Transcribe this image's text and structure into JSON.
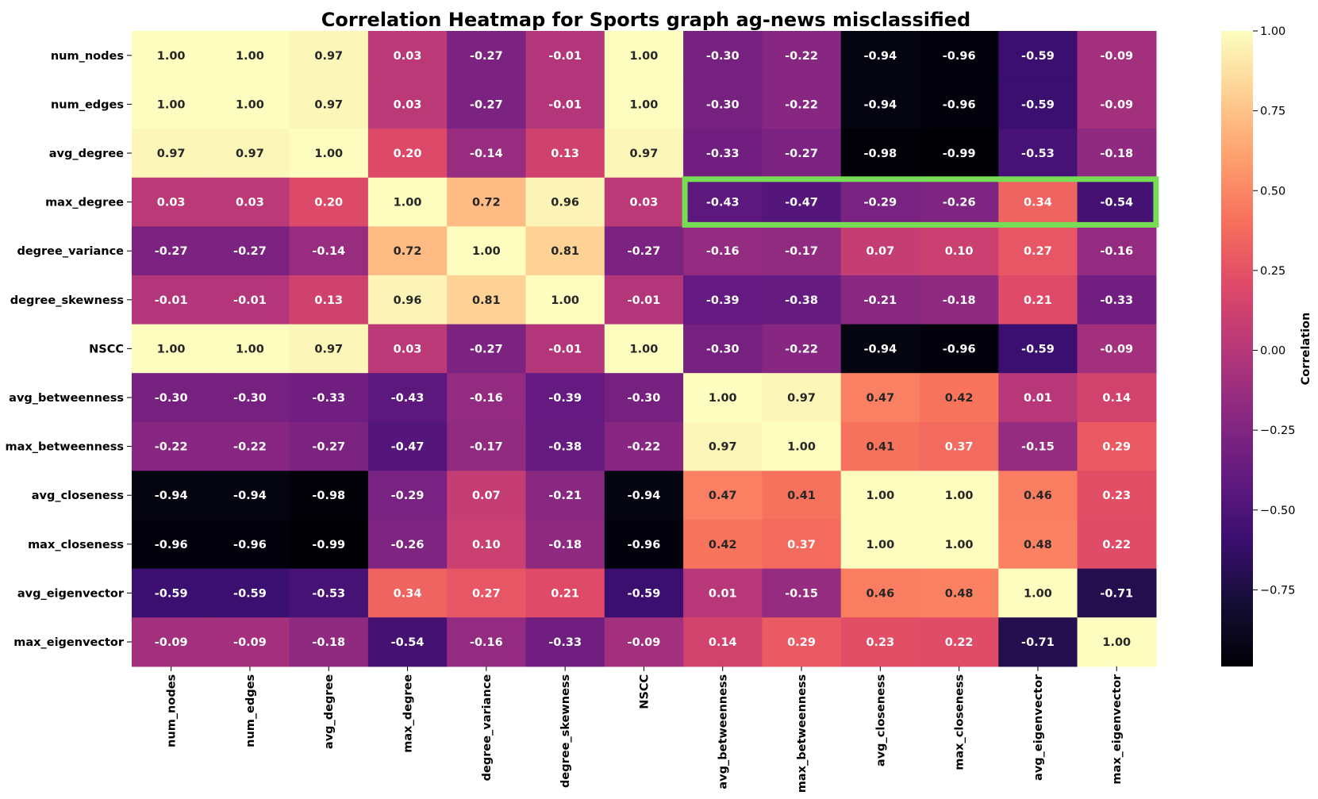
{
  "chart_data": {
    "type": "heatmap",
    "title": "Correlation Heatmap for Sports graph ag-news misclassified",
    "labels": [
      "num_nodes",
      "num_edges",
      "avg_degree",
      "max_degree",
      "degree_variance",
      "degree_skewness",
      "NSCC",
      "avg_betweenness",
      "max_betweenness",
      "avg_closeness",
      "max_closeness",
      "avg_eigenvector",
      "max_eigenvector"
    ],
    "matrix": [
      [
        1.0,
        1.0,
        0.97,
        0.03,
        -0.27,
        -0.01,
        1.0,
        -0.3,
        -0.22,
        -0.94,
        -0.96,
        -0.59,
        -0.09
      ],
      [
        1.0,
        1.0,
        0.97,
        0.03,
        -0.27,
        -0.01,
        1.0,
        -0.3,
        -0.22,
        -0.94,
        -0.96,
        -0.59,
        -0.09
      ],
      [
        0.97,
        0.97,
        1.0,
        0.2,
        -0.14,
        0.13,
        0.97,
        -0.33,
        -0.27,
        -0.98,
        -0.99,
        -0.53,
        -0.18
      ],
      [
        0.03,
        0.03,
        0.2,
        1.0,
        0.72,
        0.96,
        0.03,
        -0.43,
        -0.47,
        -0.29,
        -0.26,
        0.34,
        -0.54
      ],
      [
        -0.27,
        -0.27,
        -0.14,
        0.72,
        1.0,
        0.81,
        -0.27,
        -0.16,
        -0.17,
        0.07,
        0.1,
        0.27,
        -0.16
      ],
      [
        -0.01,
        -0.01,
        0.13,
        0.96,
        0.81,
        1.0,
        -0.01,
        -0.39,
        -0.38,
        -0.21,
        -0.18,
        0.21,
        -0.33
      ],
      [
        1.0,
        1.0,
        0.97,
        0.03,
        -0.27,
        -0.01,
        1.0,
        -0.3,
        -0.22,
        -0.94,
        -0.96,
        -0.59,
        -0.09
      ],
      [
        -0.3,
        -0.3,
        -0.33,
        -0.43,
        -0.16,
        -0.39,
        -0.3,
        1.0,
        0.97,
        0.47,
        0.42,
        0.01,
        0.14
      ],
      [
        -0.22,
        -0.22,
        -0.27,
        -0.47,
        -0.17,
        -0.38,
        -0.22,
        0.97,
        1.0,
        0.41,
        0.37,
        -0.15,
        0.29
      ],
      [
        -0.94,
        -0.94,
        -0.98,
        -0.29,
        0.07,
        -0.21,
        -0.94,
        0.47,
        0.41,
        1.0,
        1.0,
        0.46,
        0.23
      ],
      [
        -0.96,
        -0.96,
        -0.99,
        -0.26,
        0.1,
        -0.18,
        -0.96,
        0.42,
        0.37,
        1.0,
        1.0,
        0.48,
        0.22
      ],
      [
        -0.59,
        -0.59,
        -0.53,
        0.34,
        0.27,
        0.21,
        -0.59,
        0.01,
        -0.15,
        0.46,
        0.48,
        1.0,
        -0.71
      ],
      [
        -0.09,
        -0.09,
        -0.18,
        -0.54,
        -0.16,
        -0.33,
        -0.09,
        0.14,
        0.29,
        0.23,
        0.22,
        -0.71,
        1.0
      ]
    ],
    "colormap": "magma",
    "vmin": -0.99,
    "vmax": 1.0,
    "colorbar": {
      "label": "Correlation",
      "ticks": [
        1.0,
        0.75,
        0.5,
        0.25,
        0.0,
        -0.25,
        -0.5,
        -0.75
      ],
      "tick_labels": [
        "1.00",
        "0.75",
        "0.50",
        "0.25",
        "0.00",
        "−0.25",
        "−0.50",
        "−0.75"
      ]
    },
    "highlight": {
      "row": "max_degree",
      "columns": [
        "avg_betweenness",
        "max_betweenness",
        "avg_closeness",
        "max_closeness",
        "avg_eigenvector",
        "max_eigenvector"
      ],
      "color": "#77dd55"
    }
  }
}
